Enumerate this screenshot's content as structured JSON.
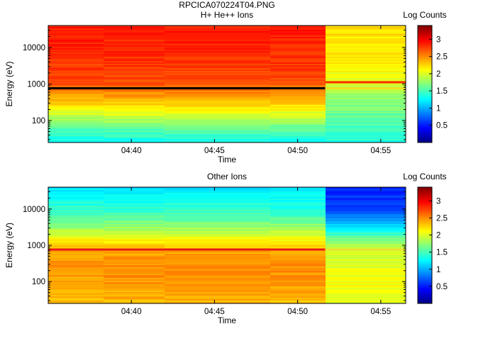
{
  "figure": {
    "filename_title": "RPCICA070224T04.PNG"
  },
  "chart_data": [
    {
      "type": "heatmap",
      "title": "H+ He++ Ions",
      "xlabel": "Time",
      "ylabel": "Energy (eV)",
      "y_scale": "log",
      "x_range": [
        "04:35",
        "04:56:30"
      ],
      "ylim": [
        25,
        40000
      ],
      "x_ticks": [
        "04:40",
        "04:45",
        "04:50",
        "04:55"
      ],
      "y_ticks": [
        {
          "value": 100,
          "label": "100"
        },
        {
          "value": 1000,
          "label": "1000"
        },
        {
          "value": 10000,
          "label": "10000"
        }
      ],
      "time_blocks": [
        {
          "start": "04:35:00",
          "end": "04:38:20"
        },
        {
          "start": "04:38:20",
          "end": "04:42:00"
        },
        {
          "start": "04:42:00",
          "end": "04:48:20"
        },
        {
          "start": "04:48:20",
          "end": "04:51:40"
        },
        {
          "start": "04:51:40",
          "end": "04:56:30"
        }
      ],
      "energy_profiles": [
        {
          "block": 0,
          "points": [
            [
              25,
              1.3
            ],
            [
              60,
              1.6
            ],
            [
              150,
              2.0
            ],
            [
              300,
              2.3
            ],
            [
              650,
              2.55
            ],
            [
              1000,
              2.7
            ],
            [
              3000,
              2.8
            ],
            [
              10000,
              2.85
            ],
            [
              40000,
              2.9
            ]
          ]
        },
        {
          "block": 1,
          "points": [
            [
              25,
              1.3
            ],
            [
              60,
              1.6
            ],
            [
              150,
              2.0
            ],
            [
              300,
              2.3
            ],
            [
              650,
              2.55
            ],
            [
              1000,
              2.7
            ],
            [
              3000,
              2.8
            ],
            [
              10000,
              2.85
            ],
            [
              40000,
              2.9
            ]
          ]
        },
        {
          "block": 2,
          "points": [
            [
              25,
              1.3
            ],
            [
              60,
              1.6
            ],
            [
              150,
              2.0
            ],
            [
              300,
              2.3
            ],
            [
              650,
              2.55
            ],
            [
              1000,
              2.7
            ],
            [
              3000,
              2.8
            ],
            [
              10000,
              2.85
            ],
            [
              40000,
              2.9
            ]
          ]
        },
        {
          "block": 3,
          "points": [
            [
              25,
              1.3
            ],
            [
              60,
              1.6
            ],
            [
              150,
              2.0
            ],
            [
              300,
              2.3
            ],
            [
              650,
              2.55
            ],
            [
              1000,
              2.7
            ],
            [
              3000,
              2.8
            ],
            [
              10000,
              2.85
            ],
            [
              40000,
              2.9
            ]
          ]
        },
        {
          "block": 4,
          "points": [
            [
              25,
              1.4
            ],
            [
              100,
              1.55
            ],
            [
              300,
              1.75
            ],
            [
              700,
              1.85
            ],
            [
              1000,
              2.0
            ],
            [
              3000,
              2.15
            ],
            [
              10000,
              2.2
            ],
            [
              40000,
              2.25
            ]
          ]
        }
      ],
      "lines": [
        {
          "energy": 760,
          "x_start": "04:35:00",
          "x_end": "04:51:40",
          "value": 3.6,
          "color": "#000000"
        },
        {
          "energy": 1120,
          "x_start": "04:51:40",
          "x_end": "04:56:30",
          "value": 3.0,
          "color": "#ff2a00"
        },
        {
          "energy": 760,
          "x_start": "04:51:40",
          "x_end": "04:56:30",
          "value": 2.4,
          "color": "#f2e020"
        }
      ]
    },
    {
      "type": "heatmap",
      "title": "Other Ions",
      "xlabel": "Time",
      "ylabel": "Energy (eV)",
      "y_scale": "log",
      "x_range": [
        "04:35",
        "04:56:30"
      ],
      "ylim": [
        25,
        40000
      ],
      "x_ticks": [
        "04:40",
        "04:45",
        "04:50",
        "04:55"
      ],
      "y_ticks": [
        {
          "value": 100,
          "label": "100"
        },
        {
          "value": 1000,
          "label": "1000"
        },
        {
          "value": 10000,
          "label": "10000"
        }
      ],
      "time_blocks": [
        {
          "start": "04:35:00",
          "end": "04:38:20"
        },
        {
          "start": "04:38:20",
          "end": "04:42:00"
        },
        {
          "start": "04:42:00",
          "end": "04:48:20"
        },
        {
          "start": "04:48:20",
          "end": "04:51:40"
        },
        {
          "start": "04:51:40",
          "end": "04:56:30"
        }
      ],
      "energy_profiles": [
        {
          "block": 0,
          "points": [
            [
              25,
              2.35
            ],
            [
              80,
              2.45
            ],
            [
              300,
              2.5
            ],
            [
              700,
              2.4
            ],
            [
              1500,
              2.1
            ],
            [
              3000,
              1.8
            ],
            [
              8000,
              1.45
            ],
            [
              20000,
              1.3
            ],
            [
              40000,
              1.2
            ]
          ]
        },
        {
          "block": 1,
          "points": [
            [
              25,
              2.35
            ],
            [
              80,
              2.45
            ],
            [
              300,
              2.5
            ],
            [
              700,
              2.4
            ],
            [
              1500,
              2.1
            ],
            [
              3000,
              1.8
            ],
            [
              8000,
              1.45
            ],
            [
              20000,
              1.3
            ],
            [
              40000,
              1.15
            ]
          ]
        },
        {
          "block": 2,
          "points": [
            [
              25,
              2.35
            ],
            [
              80,
              2.45
            ],
            [
              300,
              2.5
            ],
            [
              700,
              2.4
            ],
            [
              1500,
              2.1
            ],
            [
              3000,
              1.8
            ],
            [
              8000,
              1.45
            ],
            [
              20000,
              1.3
            ],
            [
              40000,
              1.2
            ]
          ]
        },
        {
          "block": 3,
          "points": [
            [
              25,
              2.35
            ],
            [
              80,
              2.45
            ],
            [
              300,
              2.5
            ],
            [
              700,
              2.4
            ],
            [
              1500,
              2.1
            ],
            [
              3000,
              1.8
            ],
            [
              8000,
              1.45
            ],
            [
              20000,
              1.3
            ],
            [
              40000,
              1.2
            ]
          ]
        },
        {
          "block": 4,
          "points": [
            [
              25,
              2.05
            ],
            [
              100,
              2.1
            ],
            [
              500,
              2.0
            ],
            [
              900,
              1.9
            ],
            [
              1500,
              1.65
            ],
            [
              3000,
              1.2
            ],
            [
              5000,
              0.9
            ],
            [
              10000,
              0.65
            ],
            [
              40000,
              0.55
            ]
          ]
        }
      ],
      "lines": [
        {
          "energy": 760,
          "x_start": "04:35:00",
          "x_end": "04:51:40",
          "value": 3.1,
          "color": "#e81818"
        },
        {
          "energy": 760,
          "x_start": "04:51:40",
          "x_end": "04:56:30",
          "value": 2.5,
          "color": "#f0e030"
        }
      ]
    }
  ],
  "colorbars": [
    {
      "label": "Log Counts",
      "range": [
        0,
        3.4
      ],
      "ticks": [
        {
          "value": 0.5,
          "label": "0.5"
        },
        {
          "value": 1,
          "label": "1"
        },
        {
          "value": 1.5,
          "label": "1.5"
        },
        {
          "value": 2,
          "label": "2"
        },
        {
          "value": 2.5,
          "label": "2.5"
        },
        {
          "value": 3,
          "label": "3"
        }
      ]
    },
    {
      "label": "Log Counts",
      "range": [
        0,
        3.4
      ],
      "ticks": [
        {
          "value": 0.5,
          "label": "0.5"
        },
        {
          "value": 1,
          "label": "1"
        },
        {
          "value": 1.5,
          "label": "1.5"
        },
        {
          "value": 2,
          "label": "2"
        },
        {
          "value": 2.5,
          "label": "2.5"
        },
        {
          "value": 3,
          "label": "3"
        }
      ]
    }
  ]
}
